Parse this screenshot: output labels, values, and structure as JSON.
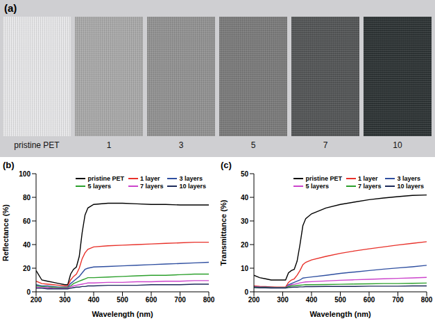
{
  "panel_a": {
    "letter": "(a)",
    "labels": [
      "pristine PET",
      "1",
      "3",
      "5",
      "7",
      "10"
    ],
    "colors": [
      "#e6e6e8",
      "#a9a9a9",
      "#929292",
      "#7b7b7b",
      "#545657",
      "#2e3435"
    ]
  },
  "chart_data": [
    {
      "type": "line",
      "title": "(b)",
      "x_label": "Wavelength (nm)",
      "y_label": "Reflectance (%)",
      "xlim": [
        200,
        800
      ],
      "xticks": [
        200,
        300,
        400,
        500,
        600,
        700,
        800
      ],
      "ylim": [
        0,
        100
      ],
      "yticks": [
        0,
        20,
        40,
        60,
        80,
        100
      ],
      "grid": false,
      "legend": "upper right",
      "x": [
        200,
        220,
        240,
        260,
        280,
        300,
        310,
        320,
        330,
        340,
        350,
        360,
        370,
        380,
        400,
        450,
        500,
        550,
        600,
        650,
        700,
        750,
        800
      ],
      "series": [
        {
          "name": "pristine PET",
          "color": "#000000",
          "values": [
            18,
            10,
            9,
            8,
            7,
            6,
            6,
            15,
            19,
            21,
            30,
            50,
            65,
            71,
            74,
            75,
            75,
            74.5,
            74,
            74,
            73.5,
            73.5,
            73.5
          ]
        },
        {
          "name": "1 layer",
          "color": "#e8312a",
          "values": [
            9,
            7,
            6.5,
            6,
            5.5,
            5,
            5,
            10,
            13,
            15,
            20,
            28,
            33,
            36,
            38,
            39,
            39.5,
            40,
            40.5,
            41,
            41.5,
            42,
            42
          ]
        },
        {
          "name": "3 layers",
          "color": "#2f4fa0",
          "values": [
            6,
            5,
            5,
            4.5,
            4,
            4,
            4,
            7,
            9,
            11,
            13,
            16,
            19,
            20,
            21,
            21.5,
            22,
            22.5,
            23,
            23.5,
            24,
            24.5,
            25
          ]
        },
        {
          "name": "5 layers",
          "color": "#2ca02c",
          "values": [
            5,
            4.5,
            4,
            4,
            3.5,
            3.5,
            3.5,
            5,
            7,
            8,
            9,
            10,
            11,
            12,
            12,
            12.5,
            13,
            13.5,
            14,
            14,
            14.5,
            15,
            15
          ]
        },
        {
          "name": "7 layers",
          "color": "#cc44cc",
          "values": [
            4,
            3.5,
            3.5,
            3,
            3,
            3,
            3,
            4,
            5,
            5.5,
            6,
            6.5,
            7,
            7.5,
            7.5,
            8,
            8,
            8.5,
            8.5,
            9,
            9,
            9.5,
            9.5
          ]
        },
        {
          "name": "10 layers",
          "color": "#1c2a5a",
          "values": [
            3,
            3,
            2.5,
            2.5,
            2.5,
            2.5,
            2.5,
            3,
            3.5,
            4,
            4,
            4.5,
            4.5,
            5,
            5,
            5.5,
            5.5,
            5.5,
            6,
            6,
            6,
            6.5,
            6.5
          ]
        }
      ]
    },
    {
      "type": "line",
      "title": "(c)",
      "x_label": "Wavelength (nm)",
      "y_label": "Transmittance (%)",
      "xlim": [
        200,
        800
      ],
      "xticks": [
        200,
        300,
        400,
        500,
        600,
        700,
        800
      ],
      "ylim": [
        0,
        50
      ],
      "yticks": [
        0,
        10,
        20,
        30,
        40,
        50
      ],
      "grid": false,
      "legend": "upper right",
      "x": [
        200,
        220,
        240,
        260,
        280,
        300,
        310,
        320,
        330,
        340,
        350,
        360,
        370,
        380,
        400,
        450,
        500,
        550,
        600,
        650,
        700,
        750,
        800
      ],
      "series": [
        {
          "name": "pristine PET",
          "color": "#000000",
          "values": [
            7,
            6,
            5.5,
            5,
            5,
            5,
            5,
            8,
            9,
            9.5,
            13,
            20,
            28,
            31,
            33,
            35.5,
            37,
            38,
            39,
            39.7,
            40.3,
            40.8,
            41
          ]
        },
        {
          "name": "1 layer",
          "color": "#e8312a",
          "values": [
            2.5,
            2.3,
            2.2,
            2.1,
            2,
            2,
            2,
            4,
            5,
            5.5,
            7,
            9,
            11.5,
            12.5,
            13.5,
            15,
            16.3,
            17.3,
            18.2,
            19,
            19.8,
            20.5,
            21.2
          ]
        },
        {
          "name": "3 layers",
          "color": "#2f4fa0",
          "values": [
            2.2,
            2,
            2,
            1.9,
            1.8,
            1.8,
            1.8,
            3,
            3.5,
            4,
            4.5,
            5,
            5.8,
            6,
            6.3,
            7,
            7.8,
            8.4,
            9,
            9.6,
            10.1,
            10.6,
            11.2
          ]
        },
        {
          "name": "5 layers",
          "color": "#cc44cc",
          "values": [
            2,
            1.9,
            1.8,
            1.8,
            1.8,
            1.8,
            1.8,
            2.5,
            3,
            3.2,
            3.5,
            3.8,
            4,
            4.2,
            4.3,
            4.6,
            4.9,
            5.1,
            5.3,
            5.5,
            5.7,
            5.9,
            6.1
          ]
        },
        {
          "name": "7 layers",
          "color": "#2ca02c",
          "values": [
            1.9,
            1.8,
            1.8,
            1.7,
            1.7,
            1.7,
            1.7,
            2.2,
            2.5,
            2.6,
            2.7,
            2.8,
            2.9,
            3,
            3,
            3.1,
            3.2,
            3.3,
            3.4,
            3.5,
            3.5,
            3.6,
            3.7
          ]
        },
        {
          "name": "10 layers",
          "color": "#1c2a5a",
          "values": [
            1.8,
            1.7,
            1.7,
            1.6,
            1.6,
            1.6,
            1.6,
            1.8,
            1.9,
            2,
            2,
            2.1,
            2.1,
            2.2,
            2.2,
            2.3,
            2.3,
            2.3,
            2.4,
            2.4,
            2.4,
            2.5,
            2.5
          ]
        }
      ]
    }
  ]
}
